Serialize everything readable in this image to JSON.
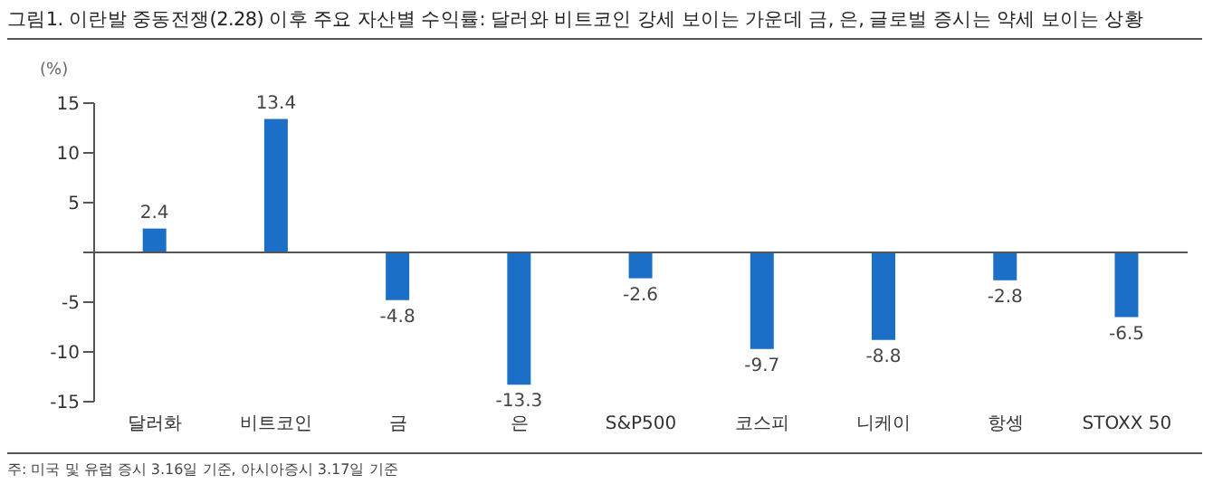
{
  "chart_data": {
    "type": "bar",
    "title": "그림1.  이란발 중동전쟁(2.28) 이후 주요 자산별 수익률: 달러와 비트코인 강세 보이는 가운데 금, 은, 글로벌 증시는 약세 보이는 상황",
    "ylabel": "(%)",
    "categories": [
      "달러화",
      "비트코인",
      "금",
      "은",
      "S&P500",
      "코스피",
      "니케이",
      "항셍",
      "STOXX 50"
    ],
    "values": [
      2.4,
      13.4,
      -4.8,
      -13.3,
      -2.6,
      -9.7,
      -8.8,
      -2.8,
      -6.5
    ],
    "color": "#1b6fc6",
    "ylim": [
      -15,
      15
    ],
    "yticks": [
      -15,
      -10,
      -5,
      {
        "value": 0,
        "label": null
      },
      5,
      10,
      15
    ],
    "grid": false,
    "legend": false,
    "ref_lines": [
      {
        "axis": "y",
        "value": 0,
        "color": "#555555"
      }
    ],
    "data_labels": true,
    "annotations": [
      "주: 미국 및 유럽 증시 3.16일 기준, 아시아증시 3.17일 기준"
    ]
  }
}
